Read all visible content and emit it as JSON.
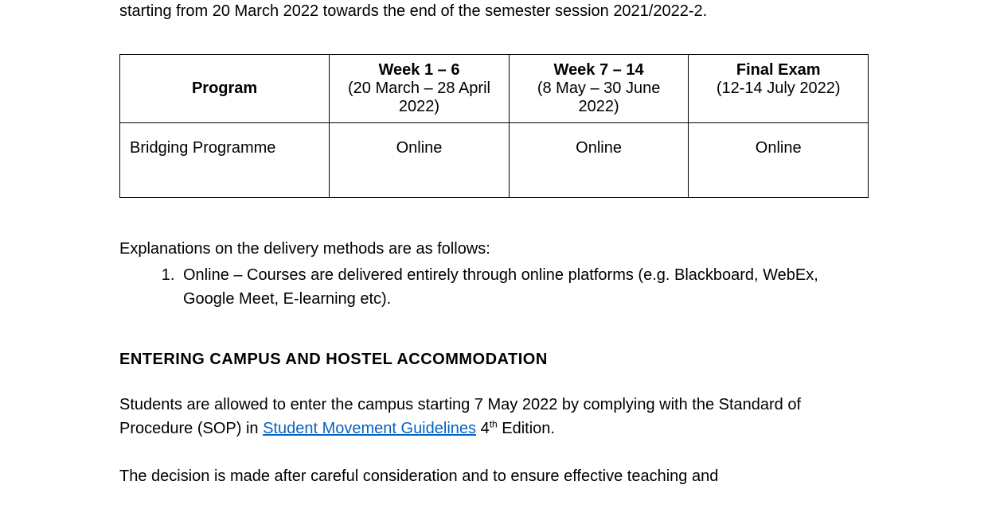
{
  "intro": "starting from 20 March 2022 towards the end of the semester session 2021/2022-2.",
  "table": {
    "headers": {
      "program": "Program",
      "col1_bold": "Week 1 – 6",
      "col1_date": "(20 March – 28 April 2022)",
      "col2_bold": "Week 7 – 14",
      "col2_date": "(8 May – 30 June 2022)",
      "col3_bold": "Final Exam",
      "col3_date": "(12-14 July 2022)"
    },
    "row": {
      "program": "Bridging Programme",
      "c1": "Online",
      "c2": "Online",
      "c3": "Online"
    }
  },
  "explain_intro": "Explanations on the delivery methods are as follows:",
  "list_item_1": "Online – Courses are delivered entirely through online platforms (e.g. Blackboard, WebEx, Google Meet, E-learning etc).",
  "section_heading": "ENTERING CAMPUS AND HOSTEL ACCOMMODATION",
  "para1_part1": "Students are allowed to enter the campus starting 7 May 2022 by complying with the Standard of Procedure (SOP) in ",
  "para1_link": "Student Movement Guidelines",
  "para1_part2": " 4",
  "para1_sup": "th",
  "para1_part3": " Edition.",
  "para2": "The decision is made after careful consideration and to ensure effective teaching and"
}
